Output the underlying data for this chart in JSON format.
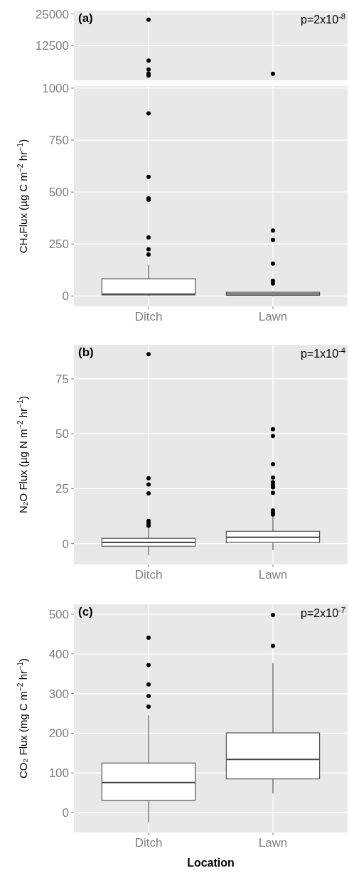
{
  "chart_data": [
    {
      "type": "scatter",
      "categories": [
        "Ditch",
        "Lawn"
      ],
      "ylim": [
        -1200,
        26300
      ],
      "yticks": [
        12500,
        25000
      ],
      "grid": true,
      "tick_labels": "y",
      "annotations": [
        "(a)",
        "p=2x10$^{-8}$"
      ],
      "series": [
        {
          "type": "scatter",
          "color": "#000000",
          "x": [
            "Ditch",
            "Ditch",
            "Ditch",
            "Ditch",
            "Ditch",
            "Lawn"
          ],
          "values": [
            22700,
            6600,
            3100,
            1500,
            700,
            1400
          ]
        }
      ]
    },
    {
      "type": "box",
      "categories": [
        "Ditch",
        "Lawn"
      ],
      "ylim": [
        -50,
        1010
      ],
      "yticks": [
        0,
        250,
        500,
        750,
        1000
      ],
      "grid": true,
      "ylabel": "CH₄Flux (µg C m$^{−2}$ hr$^{−1}$)",
      "boxes": [
        {
          "low": 0,
          "q1": 5,
          "median": 9,
          "q3": 83,
          "high": 150,
          "outliers": [
            878,
            573,
            470,
            463,
            282,
            224,
            200
          ]
        },
        {
          "low": 0,
          "q1": 3,
          "median": 10,
          "q3": 18,
          "high": 22,
          "outliers": [
            315,
            270,
            156,
            73,
            60
          ]
        }
      ]
    },
    {
      "type": "box",
      "categories": [
        "Ditch",
        "Lawn"
      ],
      "ylim": [
        -9.5,
        90.5
      ],
      "yticks": [
        0,
        25,
        50,
        75
      ],
      "grid": true,
      "ylabel": "N₂O Flux (µg N m$^{−2}$ hr$^{−1}$)",
      "annotations": [
        "(b)",
        "p=1x10$^{-4}$"
      ],
      "boxes": [
        {
          "low": -5.4,
          "q1": -1.2,
          "median": 0.5,
          "q3": 2.4,
          "high": 7,
          "outliers": [
            86.2,
            29.7,
            26.9,
            22.9,
            10.3,
            9.2,
            8.1
          ]
        },
        {
          "low": -3,
          "q1": 0.5,
          "median": 2.9,
          "q3": 5.6,
          "high": 12.4,
          "outliers": [
            52.1,
            49,
            36.1,
            30.1,
            28,
            26.6,
            25.6,
            23.1,
            15.1,
            14,
            13.2
          ]
        }
      ]
    },
    {
      "type": "box",
      "categories": [
        "Ditch",
        "Lawn"
      ],
      "ylim": [
        -50,
        525
      ],
      "yticks": [
        0,
        100,
        200,
        300,
        400,
        500
      ],
      "grid": true,
      "ylabel": "CO₂ Flux (mg C m$^{−2}$ hr$^{−1}$)",
      "xlabel": "Location",
      "annotations": [
        "(c)",
        "p=2x10$^{-7}$"
      ],
      "boxes": [
        {
          "low": -24,
          "q1": 31,
          "median": 76,
          "q3": 125,
          "high": 245,
          "outliers": [
            441,
            372,
            323,
            294,
            267
          ]
        },
        {
          "low": 48,
          "q1": 85,
          "median": 134,
          "q3": 201,
          "high": 377,
          "outliers": [
            498,
            420
          ]
        }
      ]
    }
  ]
}
